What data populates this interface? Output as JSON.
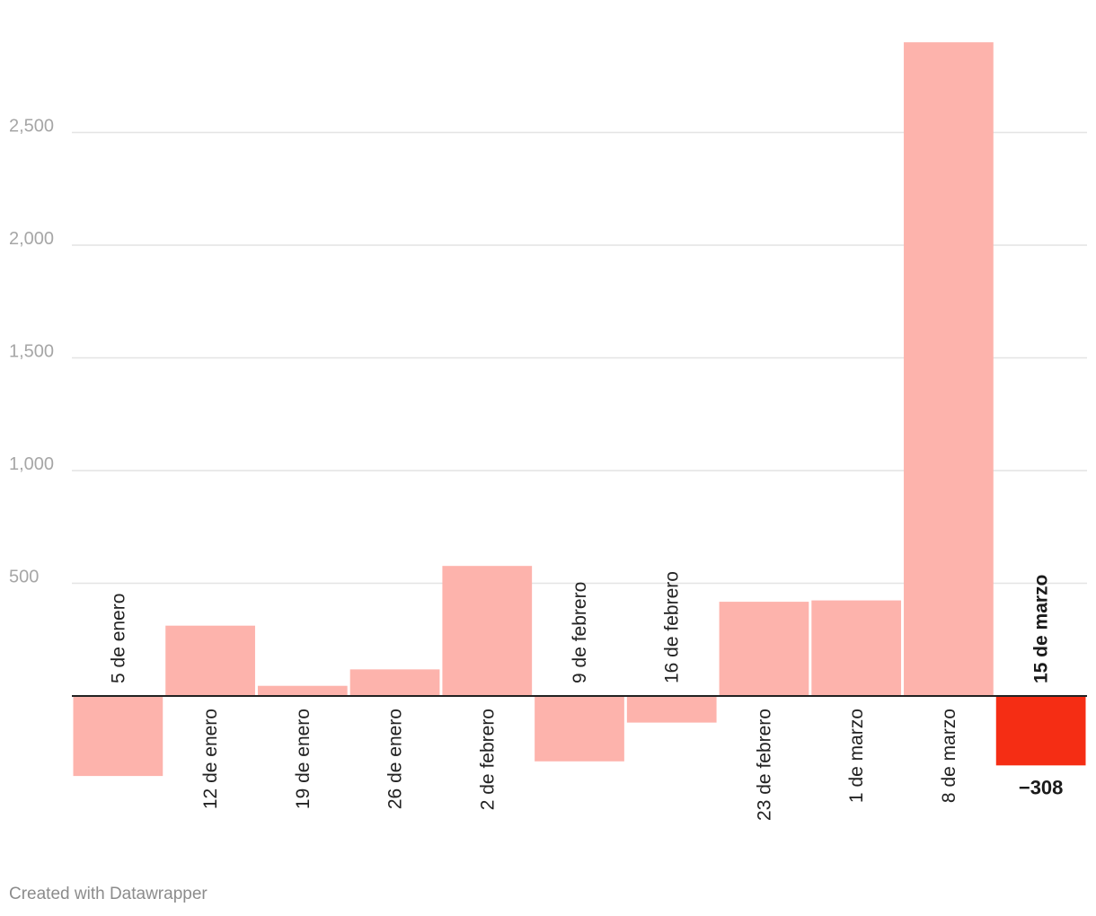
{
  "chart_data": {
    "type": "bar",
    "categories": [
      "5 de enero",
      "12 de enero",
      "19 de enero",
      "26 de enero",
      "2 de febrero",
      "9 de febrero",
      "16 de febrero",
      "23 de febrero",
      "1 de marzo",
      "8 de marzo",
      "15 de marzo"
    ],
    "values": [
      -355,
      312,
      45,
      118,
      577,
      -290,
      -118,
      418,
      424,
      2900,
      -308
    ],
    "highlight_index": 10,
    "value_label": "−308",
    "y_ticks": [
      {
        "value": 500,
        "label": "500"
      },
      {
        "value": 1000,
        "label": "1,000"
      },
      {
        "value": 1500,
        "label": "1,500"
      },
      {
        "value": 2000,
        "label": "2,000"
      },
      {
        "value": 2500,
        "label": "2,500"
      }
    ],
    "ylim": [
      -400,
      3000
    ],
    "grid": true,
    "title": "",
    "xlabel": "",
    "ylabel": ""
  },
  "colors": {
    "bar": "#fdb3ac",
    "highlight": "#f52d14",
    "grid": "#e4e4e4",
    "axis": "#222222"
  },
  "credit": "Created with Datawrapper"
}
